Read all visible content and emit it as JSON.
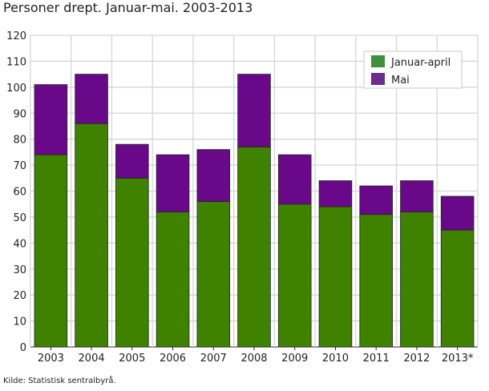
{
  "chart_data": {
    "type": "bar",
    "stacked": true,
    "title": "Personer drept. Januar-mai. 2003-2013",
    "source": "Kilde: Statistisk sentralbyrå.",
    "categories": [
      "2003",
      "2004",
      "2005",
      "2006",
      "2007",
      "2008",
      "2009",
      "2010",
      "2011",
      "2012",
      "2013*"
    ],
    "series": [
      {
        "name": "Januar-april",
        "color": "#3f8200",
        "values": [
          74,
          86,
          65,
          52,
          56,
          77,
          55,
          54,
          51,
          52,
          45
        ]
      },
      {
        "name": "Mai",
        "color": "#690889",
        "values": [
          27,
          19,
          13,
          22,
          20,
          28,
          19,
          10,
          11,
          12,
          13
        ]
      }
    ],
    "ylim": [
      0,
      120
    ],
    "yticks": [
      0,
      10,
      20,
      30,
      40,
      50,
      60,
      70,
      80,
      90,
      100,
      110,
      120
    ],
    "grid": true,
    "legend_position": "top-right"
  }
}
